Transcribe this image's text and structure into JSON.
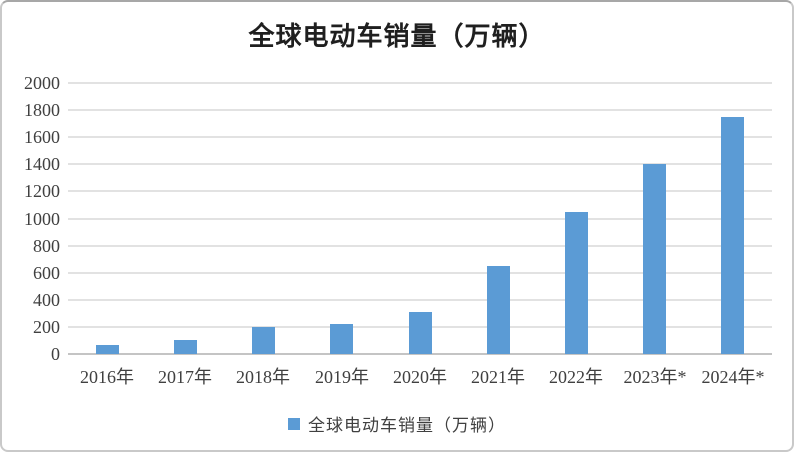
{
  "window": {
    "background_color": "#ffffff",
    "border_color": "#c9c9c9"
  },
  "chart_data": {
    "type": "bar",
    "title": "全球电动车销量（万辆）",
    "categories": [
      "2016年",
      "2017年",
      "2018年",
      "2019年",
      "2020年",
      "2021年",
      "2022年",
      "2023年*",
      "2024年*"
    ],
    "values": [
      65,
      100,
      200,
      220,
      310,
      650,
      1050,
      1400,
      1750
    ],
    "series_name": "全球电动车销量（万辆）",
    "xlabel": "",
    "ylabel": "",
    "ylim": [
      0,
      2000
    ],
    "ytick_step": 200,
    "yticks": [
      0,
      200,
      400,
      600,
      800,
      1000,
      1200,
      1400,
      1600,
      1800,
      2000
    ],
    "grid": true,
    "legend_position": "bottom",
    "bar_color": "#5B9BD5",
    "gridline_color": "#e2e2e2",
    "axis_line_color": "#c4c4c4",
    "tick_text_color": "#404040",
    "title_color": "#1f1f1f"
  },
  "legend": {
    "marker": "legend-square-icon",
    "label": "全球电动车销量（万辆）"
  }
}
